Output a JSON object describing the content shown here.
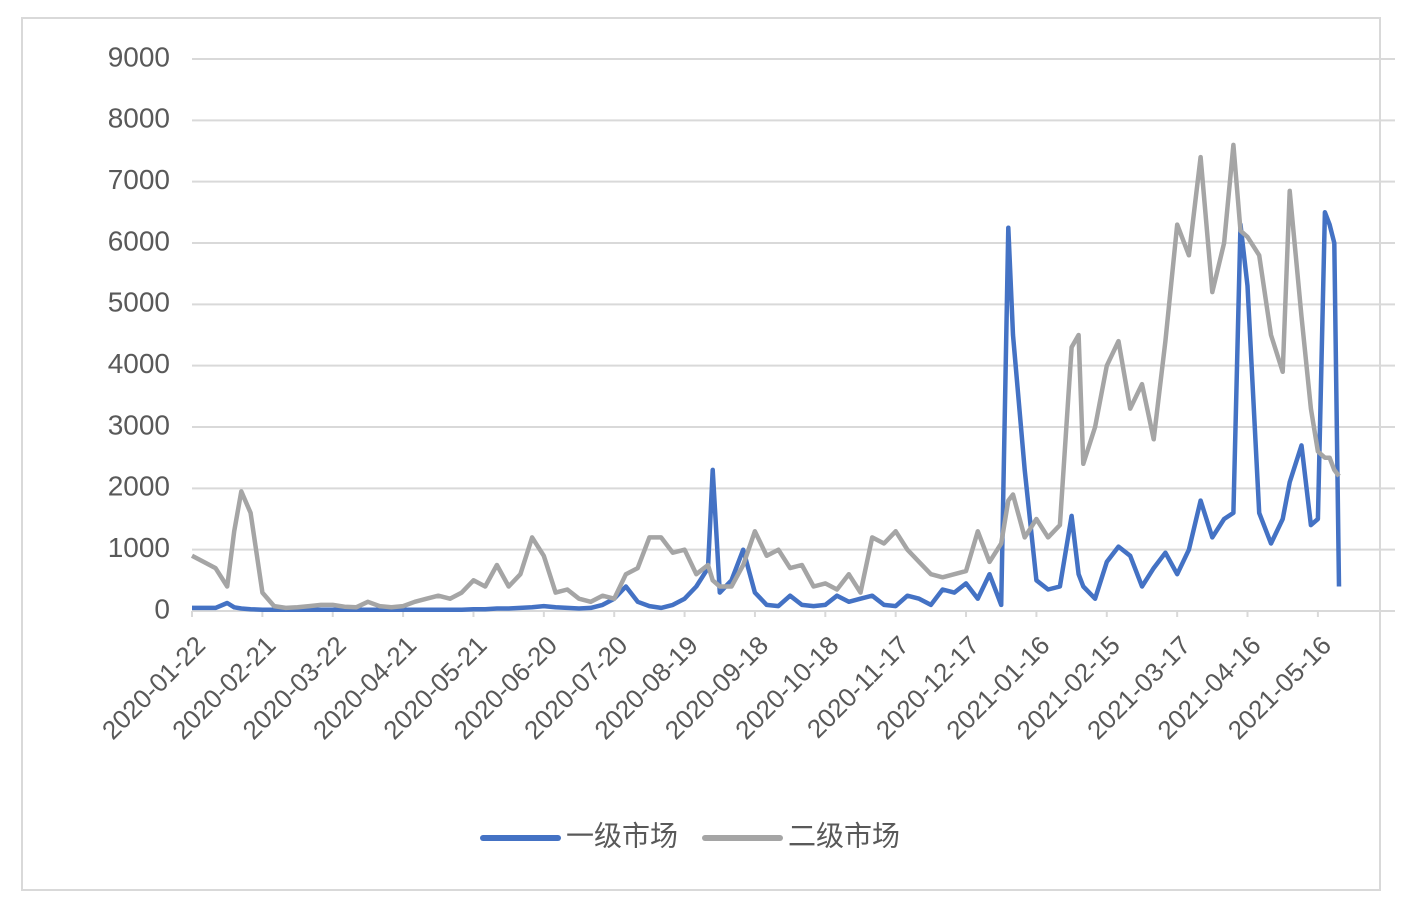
{
  "chart_data": {
    "type": "line",
    "x": [
      "2020-01-22",
      "2020-01-27",
      "2020-02-01",
      "2020-02-06",
      "2020-02-09",
      "2020-02-12",
      "2020-02-16",
      "2020-02-21",
      "2020-02-26",
      "2020-03-02",
      "2020-03-07",
      "2020-03-12",
      "2020-03-17",
      "2020-03-22",
      "2020-03-27",
      "2020-04-01",
      "2020-04-06",
      "2020-04-11",
      "2020-04-16",
      "2020-04-21",
      "2020-04-26",
      "2020-05-01",
      "2020-05-06",
      "2020-05-11",
      "2020-05-16",
      "2020-05-21",
      "2020-05-26",
      "2020-05-31",
      "2020-06-05",
      "2020-06-10",
      "2020-06-15",
      "2020-06-20",
      "2020-06-25",
      "2020-06-30",
      "2020-07-05",
      "2020-07-10",
      "2020-07-15",
      "2020-07-20",
      "2020-07-25",
      "2020-07-30",
      "2020-08-04",
      "2020-08-09",
      "2020-08-14",
      "2020-08-19",
      "2020-08-24",
      "2020-08-29",
      "2020-08-31",
      "2020-09-03",
      "2020-09-08",
      "2020-09-13",
      "2020-09-18",
      "2020-09-23",
      "2020-09-28",
      "2020-10-03",
      "2020-10-08",
      "2020-10-13",
      "2020-10-18",
      "2020-10-23",
      "2020-10-28",
      "2020-11-02",
      "2020-11-07",
      "2020-11-12",
      "2020-11-17",
      "2020-11-22",
      "2020-11-27",
      "2020-12-02",
      "2020-12-07",
      "2020-12-12",
      "2020-12-17",
      "2020-12-22",
      "2020-12-27",
      "2021-01-01",
      "2021-01-04",
      "2021-01-06",
      "2021-01-11",
      "2021-01-16",
      "2021-01-21",
      "2021-01-26",
      "2021-01-31",
      "2021-02-03",
      "2021-02-05",
      "2021-02-10",
      "2021-02-15",
      "2021-02-20",
      "2021-02-25",
      "2021-03-02",
      "2021-03-07",
      "2021-03-12",
      "2021-03-17",
      "2021-03-22",
      "2021-03-27",
      "2021-04-01",
      "2021-04-06",
      "2021-04-10",
      "2021-04-13",
      "2021-04-16",
      "2021-04-21",
      "2021-04-26",
      "2021-05-01",
      "2021-05-04",
      "2021-05-09",
      "2021-05-13",
      "2021-05-16",
      "2021-05-19",
      "2021-05-21",
      "2021-05-23",
      "2021-05-25"
    ],
    "series": [
      {
        "name": "一级市场",
        "color": "#4472c4",
        "values": [
          50,
          50,
          50,
          130,
          60,
          40,
          30,
          20,
          20,
          20,
          20,
          20,
          20,
          20,
          20,
          20,
          20,
          20,
          20,
          20,
          20,
          20,
          20,
          20,
          20,
          30,
          30,
          40,
          40,
          50,
          60,
          80,
          60,
          50,
          40,
          50,
          100,
          200,
          400,
          150,
          80,
          50,
          100,
          200,
          400,
          700,
          2300,
          300,
          500,
          1000,
          300,
          100,
          80,
          250,
          100,
          80,
          100,
          250,
          150,
          200,
          250,
          100,
          80,
          250,
          200,
          100,
          350,
          300,
          450,
          200,
          600,
          100,
          6250,
          4500,
          2300,
          500,
          350,
          400,
          1550,
          600,
          400,
          200,
          800,
          1050,
          900,
          400,
          700,
          950,
          600,
          1000,
          1800,
          1200,
          1500,
          1600,
          6300,
          5300,
          1600,
          1100,
          1500,
          2100,
          2700,
          1400,
          1500,
          6500,
          6300,
          6000,
          400
        ]
      },
      {
        "name": "二级市场",
        "color": "#a5a5a5",
        "values": [
          900,
          800,
          700,
          400,
          1300,
          1950,
          1600,
          300,
          80,
          50,
          60,
          80,
          100,
          100,
          70,
          60,
          150,
          80,
          60,
          80,
          150,
          200,
          250,
          200,
          300,
          500,
          400,
          750,
          400,
          600,
          1200,
          900,
          300,
          350,
          200,
          150,
          250,
          200,
          600,
          700,
          1200,
          1200,
          950,
          1000,
          600,
          750,
          500,
          400,
          400,
          750,
          1300,
          900,
          1000,
          700,
          750,
          400,
          450,
          350,
          600,
          300,
          1200,
          1100,
          1300,
          1000,
          800,
          600,
          550,
          600,
          650,
          1300,
          800,
          1100,
          1800,
          1900,
          1200,
          1500,
          1200,
          1400,
          4300,
          4500,
          2400,
          3000,
          4000,
          4400,
          3300,
          3700,
          2800,
          4400,
          6300,
          5800,
          7400,
          5200,
          6000,
          7600,
          6200,
          6100,
          5800,
          4500,
          3900,
          6850,
          4800,
          3300,
          2600,
          2500,
          2500,
          2300,
          2200
        ]
      }
    ],
    "xlim": [
      "2020-01-22",
      "2021-05-25"
    ],
    "xticks": [
      "2020-01-22",
      "2020-02-21",
      "2020-03-22",
      "2020-04-21",
      "2020-05-21",
      "2020-06-20",
      "2020-07-20",
      "2020-08-19",
      "2020-09-18",
      "2020-10-18",
      "2020-11-17",
      "2020-12-17",
      "2021-01-16",
      "2021-02-15",
      "2021-03-17",
      "2021-04-16",
      "2021-05-16"
    ],
    "ylim": [
      0,
      9000
    ],
    "yticks": [
      0,
      1000,
      2000,
      3000,
      4000,
      5000,
      6000,
      7000,
      8000,
      9000
    ],
    "grid": true,
    "legend": "bottom"
  }
}
